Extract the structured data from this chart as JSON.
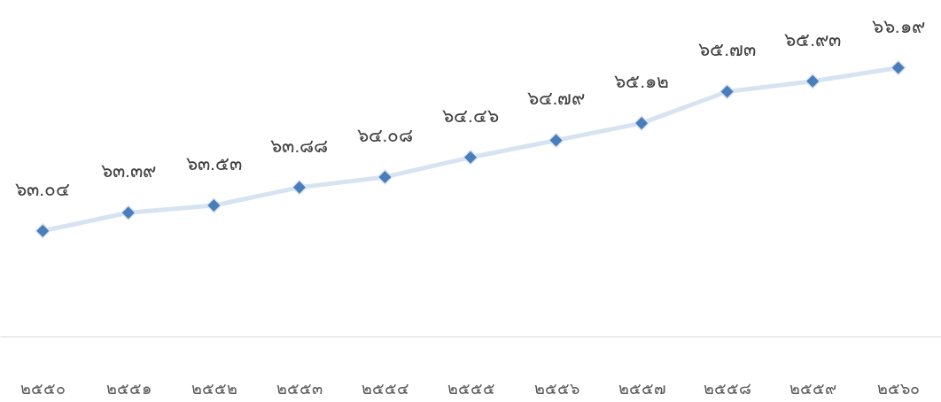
{
  "chart_data": {
    "type": "line",
    "categories": [
      "๒๕๕๐",
      "๒๕๕๑",
      "๒๕๕๒",
      "๒๕๕๓",
      "๒๕๕๔",
      "๒๕๕๕",
      "๒๕๕๖",
      "๒๕๕๗",
      "๒๕๕๘",
      "๒๕๕๙",
      "๒๕๖๐"
    ],
    "series": [
      {
        "color": "#4a7ebb",
        "values": [
          63.04,
          63.39,
          63.53,
          63.88,
          64.08,
          64.46,
          64.79,
          65.12,
          65.73,
          65.93,
          66.19
        ],
        "value_labels": [
          "๖๓.๐๔",
          "๖๓.๓๙",
          "๖๓.๕๓",
          "๖๓.๘๘",
          "๖๔.๐๘",
          "๖๔.๔๖",
          "๖๔.๗๙",
          "๖๕.๑๒",
          "๖๕.๗๓",
          "๖๕.๙๓",
          "๖๖.๑๙"
        ]
      }
    ],
    "ylim": [
      61,
      67.5
    ],
    "marker": "diamond",
    "line_style": "solid",
    "grid": false
  }
}
